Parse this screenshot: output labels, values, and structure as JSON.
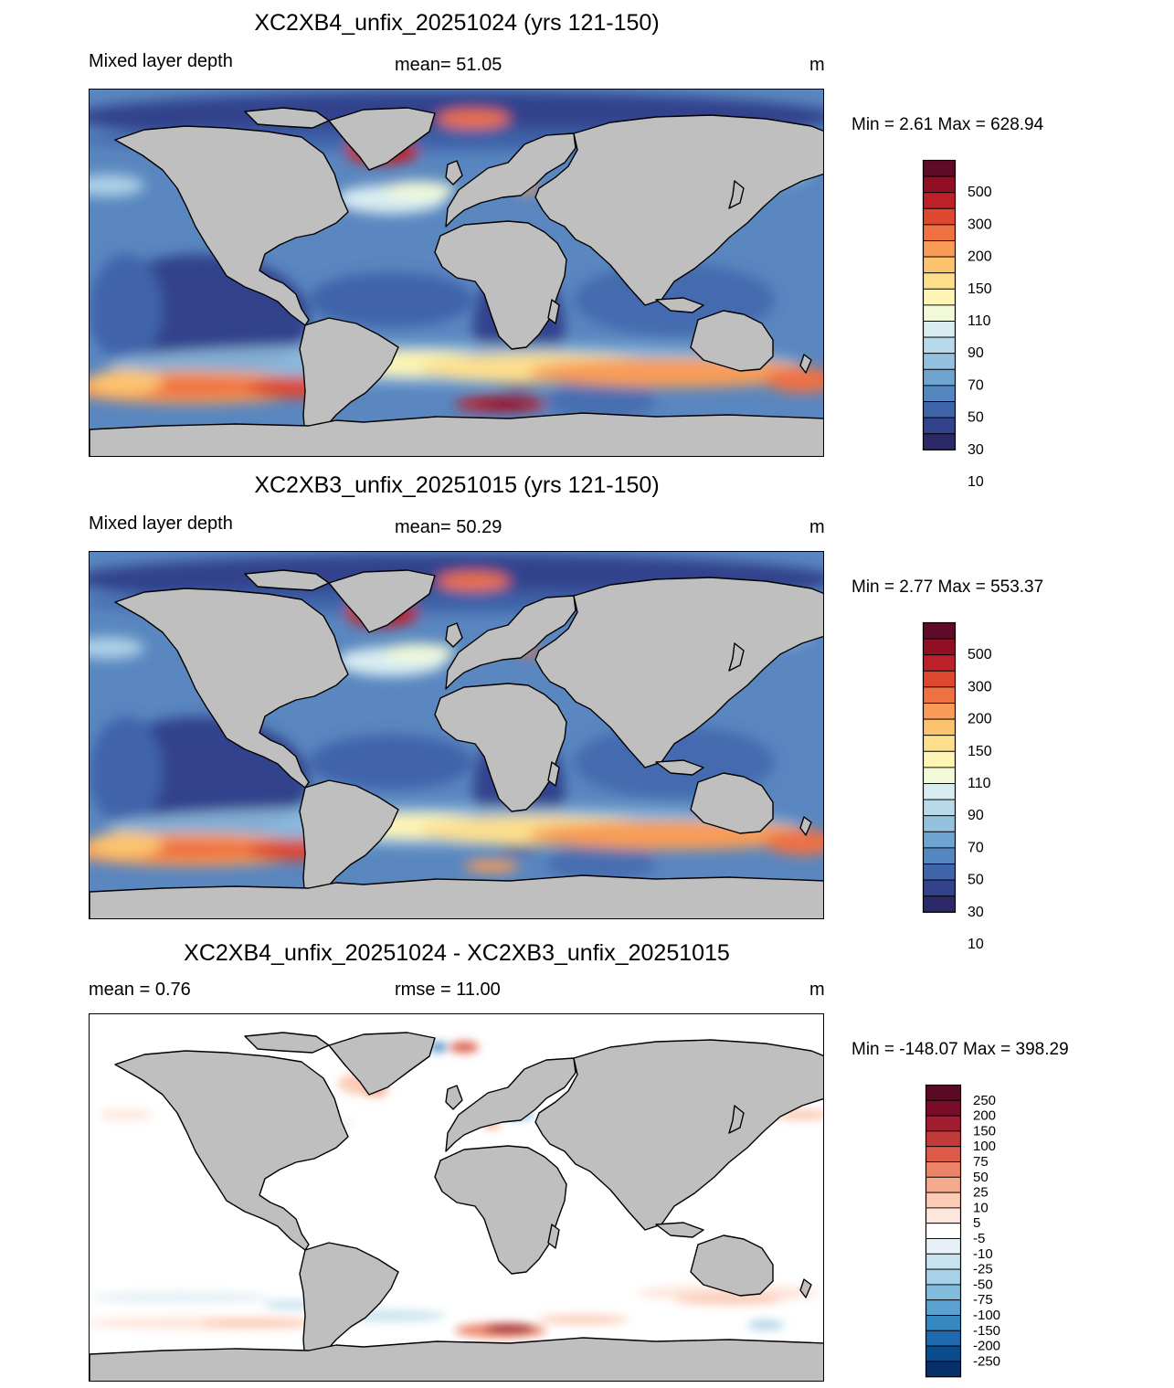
{
  "panels": [
    {
      "title": "XC2XB4_unfix_20251024 (yrs 121-150)",
      "left_label": "Mixed layer depth",
      "center_label": "mean=  51.05",
      "units": "m",
      "minmax": "Min =    2.61 Max = 628.94",
      "field": "mld_b4",
      "colorbar": {
        "colors": [
          "#2b2a66",
          "#33428c",
          "#3f64aa",
          "#5486bf",
          "#6fa4d0",
          "#93c1df",
          "#b7d9ea",
          "#d9edf1",
          "#f2f9d8",
          "#fef4b3",
          "#fddf8b",
          "#fcc36e",
          "#f89c57",
          "#ef7142",
          "#de4730",
          "#bc2129",
          "#900f25",
          "#5f0a26"
        ],
        "labels": [
          "10",
          "30",
          "50",
          "70",
          "90",
          "110",
          "150",
          "200",
          "300",
          "500"
        ]
      }
    },
    {
      "title": "XC2XB3_unfix_20251015 (yrs 121-150)",
      "left_label": "Mixed layer depth",
      "center_label": "mean=  50.29",
      "units": "m",
      "minmax": "Min =    2.77 Max = 553.37",
      "field": "mld_b3",
      "colorbar": {
        "colors": [
          "#2b2a66",
          "#33428c",
          "#3f64aa",
          "#5486bf",
          "#6fa4d0",
          "#93c1df",
          "#b7d9ea",
          "#d9edf1",
          "#f2f9d8",
          "#fef4b3",
          "#fddf8b",
          "#fcc36e",
          "#f89c57",
          "#ef7142",
          "#de4730",
          "#bc2129",
          "#900f25",
          "#5f0a26"
        ],
        "labels": [
          "10",
          "30",
          "50",
          "70",
          "90",
          "110",
          "150",
          "200",
          "300",
          "500"
        ]
      }
    },
    {
      "title": "XC2XB4_unfix_20251024 - XC2XB3_unfix_20251015",
      "left_label": "mean =   0.76",
      "center_label": "rmse =  11.00",
      "units": "m",
      "minmax": "Min = -148.07 Max = 398.29",
      "field": "diff",
      "colorbar": {
        "colors": [
          "#08306b",
          "#0b4d8c",
          "#1f6aaf",
          "#3787c0",
          "#5aa1cf",
          "#82bbdc",
          "#a8d0e6",
          "#c9e2ef",
          "#e6f0f6",
          "#ffffff",
          "#fde6dc",
          "#fbcbb6",
          "#f6aa8d",
          "#ec8467",
          "#dc5b4a",
          "#c33a3a",
          "#a11d32",
          "#7a0c2a",
          "#5b0a24"
        ],
        "labels": [
          "-250",
          "-200",
          "-150",
          "-100",
          "-75",
          "-50",
          "-25",
          "-10",
          "-5",
          "5",
          "10",
          "25",
          "50",
          "75",
          "100",
          "150",
          "200",
          "250"
        ]
      }
    }
  ]
}
